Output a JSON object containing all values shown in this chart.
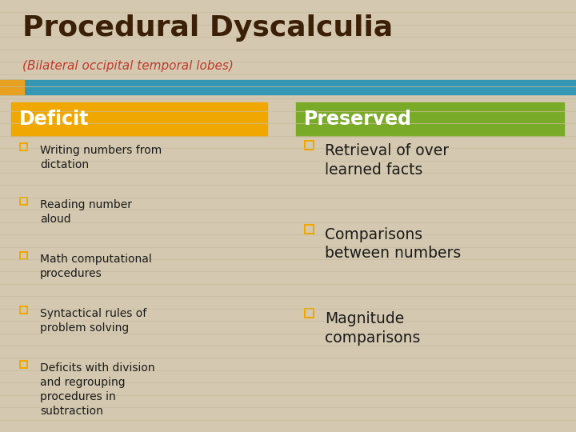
{
  "title": "Procedural Dyscalculia",
  "subtitle": "(Bilateral occipital temporal lobes)",
  "title_color": "#3B2007",
  "subtitle_color": "#C0392B",
  "background_color": "#D4C9B0",
  "stripe_color": "#C8BC9E",
  "header_bar_color": "#3498B5",
  "accent_bar_color": "#E8A020",
  "deficit_header": "Deficit",
  "preserved_header": "Preserved",
  "deficit_header_bg": "#F0A800",
  "preserved_header_bg": "#7AAB28",
  "header_text_color": "#FFFFFF",
  "bullet_color": "#F0A800",
  "body_text_color": "#1A1A1A",
  "deficit_items": [
    "Writing numbers from\ndictation",
    "Reading number\naloud",
    "Math computational\nprocedures",
    "Syntactical rules of\nproblem solving",
    "Deficits with division\nand regrouping\nprocedures in\nsubtraction"
  ],
  "preserved_items": [
    "Retrieval of over\nlearned facts",
    "Comparisons\nbetween numbers",
    "Magnitude\ncomparisons"
  ]
}
